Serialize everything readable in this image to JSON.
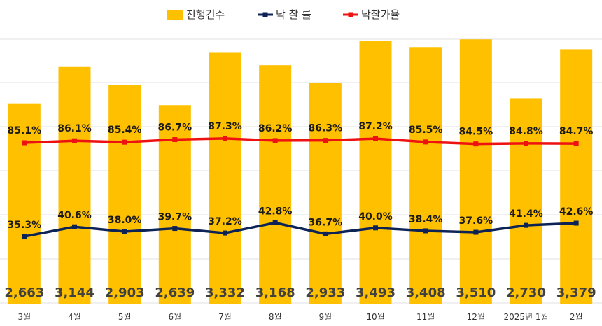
{
  "chart_data": {
    "type": "bar",
    "categories": [
      "3월",
      "4월",
      "5월",
      "6월",
      "7월",
      "8월",
      "9월",
      "10월",
      "11월",
      "12월",
      "2025년 1월",
      "2월"
    ],
    "series": [
      {
        "name": "진행건수",
        "type": "bar",
        "color": "#FFC000",
        "values": [
          2663,
          3144,
          2903,
          2639,
          3332,
          3168,
          2933,
          3493,
          3408,
          3510,
          2730,
          3379
        ],
        "labels": [
          "2,663",
          "3,144",
          "2,903",
          "2,639",
          "3,332",
          "3,168",
          "2,933",
          "3,493",
          "3,408",
          "3,510",
          "2,730",
          "3,379"
        ]
      },
      {
        "name": "낙 찰 률",
        "type": "line",
        "color": "#0D2356",
        "values": [
          35.3,
          40.6,
          38.0,
          39.7,
          37.2,
          42.8,
          36.7,
          40.0,
          38.4,
          37.6,
          41.4,
          42.6
        ],
        "labels": [
          "35.3%",
          "40.6%",
          "38.0%",
          "39.7%",
          "37.2%",
          "42.8%",
          "36.7%",
          "40.0%",
          "38.4%",
          "37.6%",
          "41.4%",
          "42.6%"
        ]
      },
      {
        "name": "낙찰가율",
        "type": "line",
        "color": "#EE1111",
        "values": [
          85.1,
          86.1,
          85.4,
          86.7,
          87.3,
          86.2,
          86.3,
          87.2,
          85.5,
          84.5,
          84.8,
          84.7
        ],
        "labels": [
          "85.1%",
          "86.1%",
          "85.4%",
          "86.7%",
          "87.3%",
          "86.2%",
          "86.3%",
          "87.2%",
          "85.5%",
          "84.5%",
          "84.8%",
          "84.7%"
        ]
      }
    ],
    "legend_position": "top-center",
    "grid": true
  }
}
